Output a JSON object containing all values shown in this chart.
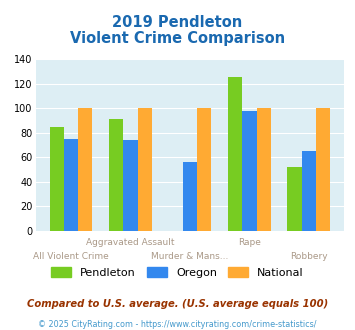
{
  "title_line1": "2019 Pendleton",
  "title_line2": "Violent Crime Comparison",
  "pendleton": [
    85,
    91,
    0,
    126,
    52
  ],
  "oregon": [
    75,
    74,
    56,
    98,
    65
  ],
  "national": [
    100,
    100,
    100,
    100,
    100
  ],
  "pendleton_color": "#77cc22",
  "oregon_color": "#3388ee",
  "national_color": "#ffaa33",
  "ylim": [
    0,
    140
  ],
  "yticks": [
    0,
    20,
    40,
    60,
    80,
    100,
    120,
    140
  ],
  "plot_bg": "#ddeef4",
  "title_color": "#1a69b0",
  "footnote": "Compared to U.S. average. (U.S. average equals 100)",
  "footnote2": "© 2025 CityRating.com - https://www.cityrating.com/crime-statistics/",
  "footnote_color": "#993300",
  "footnote2_color": "#4499cc",
  "xlabel_color": "#aa9988"
}
